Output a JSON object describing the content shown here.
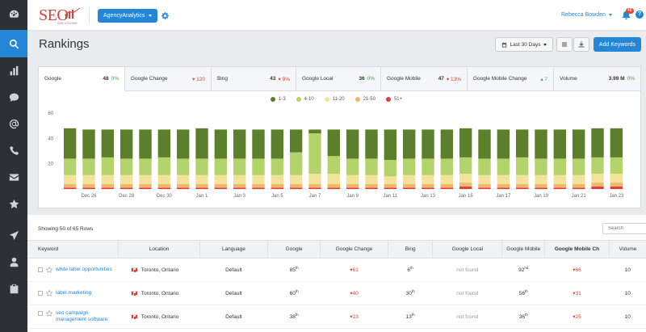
{
  "sidebar": {
    "items": [
      {
        "icon": "dashboard-icon"
      },
      {
        "icon": "search-icon",
        "active": true
      },
      {
        "icon": "bar-chart-icon"
      },
      {
        "icon": "chat-icon"
      },
      {
        "icon": "at-icon"
      },
      {
        "icon": "phone-icon"
      },
      {
        "icon": "mail-icon"
      },
      {
        "icon": "star-icon"
      },
      {
        "icon": "send-icon"
      },
      {
        "icon": "user-icon"
      },
      {
        "icon": "clipboard-icon"
      }
    ]
  },
  "header": {
    "logo_text": "SEO",
    "logo_sub": "SOLUTIONS",
    "agency_button": "AgencyAnalytics",
    "user_name": "Rebecca Bowden",
    "notification_count": "48",
    "help": "?"
  },
  "page": {
    "title": "Rankings",
    "date_range": "Last 30 Days",
    "add_button": "Add Keywords"
  },
  "tabs": [
    {
      "label": "Google",
      "value": "48",
      "change": "0%",
      "dir": "flat",
      "active": true
    },
    {
      "label": "Google Change",
      "value": "",
      "change": "120",
      "dir": "down"
    },
    {
      "label": "Bing",
      "value": "43",
      "change": "9%",
      "dir": "down"
    },
    {
      "label": "Google Local",
      "value": "36",
      "change": "0%",
      "dir": "flat"
    },
    {
      "label": "Google Mobile",
      "value": "47",
      "change": "13%",
      "dir": "down"
    },
    {
      "label": "Google Mobile Change",
      "value": "",
      "change": "7",
      "dir": "up"
    },
    {
      "label": "Volume",
      "value": "3.99 M",
      "change": "0%",
      "dir": "flat"
    }
  ],
  "chart_data": {
    "type": "bar",
    "stacked": true,
    "x": [
      "Dec 25",
      "Dec 26",
      "Dec 27",
      "Dec 28",
      "Dec 29",
      "Dec 30",
      "Dec 31",
      "Jan 1",
      "Jan 2",
      "Jan 3",
      "Jan 4",
      "Jan 5",
      "Jan 6",
      "Jan 7",
      "Jan 8",
      "Jan 9",
      "Jan 10",
      "Jan 11",
      "Jan 12",
      "Jan 13",
      "Jan 14",
      "Jan 15",
      "Jan 16",
      "Jan 17",
      "Jan 18",
      "Jan 19",
      "Jan 20",
      "Jan 21",
      "Jan 22",
      "Jan 23"
    ],
    "tick_labels": [
      "Dec 26",
      "Dec 28",
      "Dec 30",
      "Jan 1",
      "Jan 3",
      "Jan 5",
      "Jan 7",
      "Jan 9",
      "Jan 11",
      "Jan 13",
      "Jan 15",
      "Jan 17",
      "Jan 19",
      "Jan 21",
      "Jan 23"
    ],
    "yticks": [
      20,
      40,
      60
    ],
    "ylim": [
      0,
      60
    ],
    "legend_position": "top-center",
    "series": [
      {
        "name": "1-3",
        "color": "#5b7f2b",
        "values": [
          24,
          23,
          22,
          23,
          23,
          22,
          23,
          24,
          23,
          23,
          23,
          23,
          18,
          3,
          21,
          23,
          23,
          24,
          23,
          23,
          23,
          23,
          23,
          23,
          22,
          23,
          23,
          23,
          23,
          23
        ]
      },
      {
        "name": "4-10",
        "color": "#b5d36b",
        "values": [
          13,
          13,
          14,
          13,
          13,
          14,
          13,
          13,
          13,
          13,
          13,
          13,
          18,
          32,
          14,
          13,
          13,
          13,
          13,
          13,
          13,
          13,
          13,
          13,
          14,
          13,
          13,
          13,
          13,
          13
        ]
      },
      {
        "name": "11-20",
        "color": "#f2e39b",
        "values": [
          7,
          7,
          7,
          7,
          7,
          7,
          7,
          7,
          7,
          7,
          7,
          7,
          7,
          8,
          8,
          7,
          7,
          6,
          7,
          7,
          7,
          7,
          7,
          7,
          7,
          7,
          7,
          7,
          7,
          7
        ]
      },
      {
        "name": "21-50",
        "color": "#f3b56a",
        "values": [
          3,
          3,
          3,
          3,
          3,
          3,
          3,
          3,
          3,
          3,
          3,
          3,
          3,
          3,
          3,
          3,
          3,
          3,
          3,
          3,
          3,
          3,
          3,
          3,
          3,
          3,
          3,
          3,
          3,
          3
        ]
      },
      {
        "name": "51+",
        "color": "#d9423b",
        "values": [
          1,
          1,
          1,
          1,
          1,
          1,
          1,
          1,
          1,
          1,
          1,
          1,
          1,
          1,
          1,
          1,
          1,
          1,
          1,
          1,
          1,
          2,
          1,
          1,
          1,
          1,
          1,
          1,
          2,
          2
        ]
      }
    ]
  },
  "table": {
    "showing": "Showing 50 of 65 Rows",
    "search_placeholder": "Search",
    "columns": [
      "Keyword",
      "Location",
      "Language",
      "Google",
      "Google Change",
      "Bing",
      "Google Local",
      "Google Mobile",
      "Google Mobile Ch",
      "Volume"
    ],
    "rows": [
      {
        "keyword": "white label opportunities",
        "location": "Toronto, Ontario",
        "language": "Default",
        "google": "85",
        "google_sup": "th",
        "google_change": "61",
        "bing": "6",
        "bing_sup": "th",
        "google_local": "not found",
        "google_mobile": "92",
        "google_mobile_sup": "nd",
        "mobile_change": "66",
        "volume": "10"
      },
      {
        "keyword": "label marketing",
        "location": "Toronto, Ontario",
        "language": "Default",
        "google": "60",
        "google_sup": "th",
        "google_change": "40",
        "bing": "30",
        "bing_sup": "th",
        "google_local": "not found",
        "google_mobile": "56",
        "google_mobile_sup": "th",
        "mobile_change": "31",
        "volume": "10"
      },
      {
        "keyword": "seo campaign management software",
        "location": "Toronto, Ontario",
        "language": "Default",
        "google": "38",
        "google_sup": "th",
        "google_change": "23",
        "bing": "13",
        "bing_sup": "th",
        "google_local": "not found",
        "google_mobile": "36",
        "google_mobile_sup": "th",
        "mobile_change": "25",
        "volume": "10"
      }
    ]
  }
}
